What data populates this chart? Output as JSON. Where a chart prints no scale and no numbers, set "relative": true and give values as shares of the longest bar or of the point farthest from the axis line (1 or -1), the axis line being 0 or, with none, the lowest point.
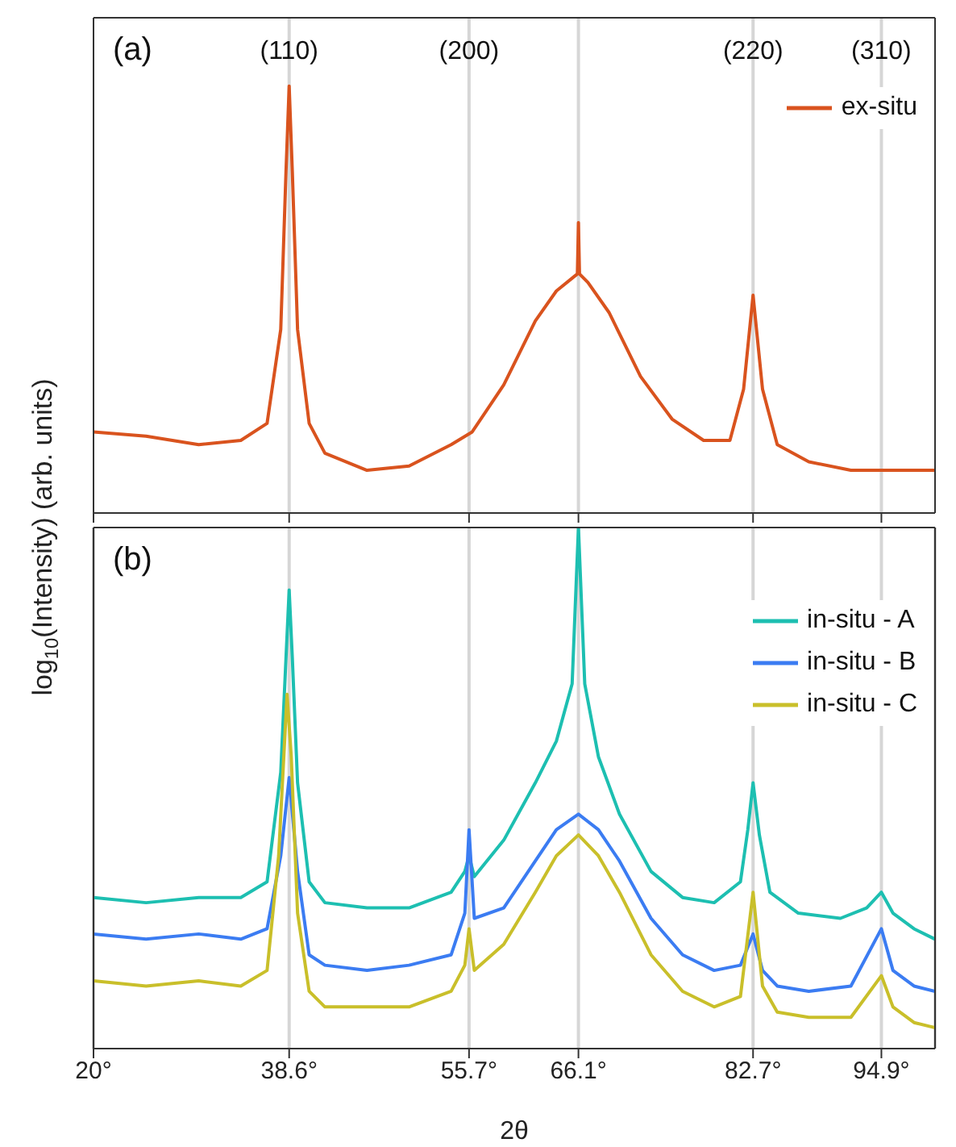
{
  "chart_data": [
    {
      "type": "line",
      "title": "(a)",
      "ylabel": "log$_{10}$(Intensity) (arb. units)",
      "relative": true,
      "xlim": [
        20,
        100
      ],
      "xticks": [
        20,
        38.6,
        55.7,
        66.1,
        82.7,
        94.9
      ],
      "tick_labels": false,
      "legend": "top right",
      "marker": "none",
      "line_style": "solid",
      "ref_lines": [
        {
          "axis": "x",
          "value": 38.6
        },
        {
          "axis": "x",
          "value": 55.7
        },
        {
          "axis": "x",
          "value": 66.1
        },
        {
          "axis": "x",
          "value": 82.7
        },
        {
          "axis": "x",
          "value": 94.9
        }
      ],
      "annotations": [
        {
          "text": "(110)",
          "x": 38.6
        },
        {
          "text": "(200)",
          "x": 55.7
        },
        {
          "text": "(220)",
          "x": 82.7
        },
        {
          "text": "(310)",
          "x": 94.9
        }
      ],
      "series": [
        {
          "name": "ex-situ",
          "color": "#d9531e",
          "x": [
            20,
            25,
            30,
            34,
            36.5,
            37.8,
            38.3,
            38.6,
            38.9,
            39.4,
            40.5,
            42,
            46,
            50,
            54,
            56,
            59,
            62,
            64,
            65.5,
            66,
            66.1,
            66.2,
            67,
            69,
            72,
            75,
            78,
            80.5,
            81.8,
            82.7,
            83.6,
            85,
            88,
            92,
            95,
            100
          ],
          "values": [
            0.19,
            0.18,
            0.16,
            0.17,
            0.21,
            0.43,
            0.8,
            1,
            0.8,
            0.43,
            0.21,
            0.14,
            0.1,
            0.11,
            0.16,
            0.19,
            0.3,
            0.45,
            0.52,
            0.55,
            0.56,
            0.68,
            0.56,
            0.54,
            0.47,
            0.32,
            0.22,
            0.17,
            0.17,
            0.29,
            0.51,
            0.29,
            0.16,
            0.12,
            0.1,
            0.1,
            0.1
          ]
        }
      ]
    },
    {
      "type": "line",
      "title": "(b)",
      "xlabel": "2θ",
      "relative": true,
      "xlim": [
        20,
        100
      ],
      "xticks": [
        {
          "value": 20,
          "label": "20°"
        },
        {
          "value": 38.6,
          "label": "38.6°"
        },
        {
          "value": 55.7,
          "label": "55.7°"
        },
        {
          "value": 66.1,
          "label": "66.1°"
        },
        {
          "value": 82.7,
          "label": "82.7°"
        },
        {
          "value": 94.9,
          "label": "94.9°"
        }
      ],
      "tick_labels": "x",
      "grid": "x",
      "legend": "top right",
      "marker": "none",
      "line_style": "solid",
      "series": [
        {
          "name": "in-situ - A",
          "color": "#1dbfb1",
          "x": [
            20,
            25,
            30,
            34,
            36.5,
            37.8,
            38.3,
            38.6,
            38.9,
            39.4,
            40.5,
            42,
            46,
            50,
            54,
            55.3,
            55.7,
            56.2,
            59,
            62,
            64,
            65.5,
            66.1,
            66.7,
            68,
            70,
            73,
            76,
            79,
            81.5,
            82.2,
            82.7,
            83.3,
            84.3,
            87,
            91,
            93.5,
            94.9,
            96,
            98,
            100
          ],
          "values": [
            0.29,
            0.28,
            0.29,
            0.29,
            0.32,
            0.53,
            0.75,
            0.88,
            0.75,
            0.51,
            0.32,
            0.28,
            0.27,
            0.27,
            0.3,
            0.34,
            0.37,
            0.33,
            0.4,
            0.51,
            0.59,
            0.7,
            1,
            0.7,
            0.56,
            0.45,
            0.34,
            0.29,
            0.28,
            0.32,
            0.42,
            0.51,
            0.41,
            0.3,
            0.26,
            0.25,
            0.27,
            0.3,
            0.26,
            0.23,
            0.21
          ]
        },
        {
          "name": "in-situ - B",
          "color": "#3b7cf2",
          "x": [
            20,
            25,
            30,
            34,
            36.5,
            37.8,
            38.6,
            39.4,
            40.5,
            42,
            46,
            50,
            54,
            55.3,
            55.7,
            56.2,
            59,
            62,
            64,
            66.1,
            68,
            70,
            73,
            76,
            79,
            81.5,
            82.7,
            83.6,
            85,
            88,
            92,
            94.9,
            96,
            98,
            100
          ],
          "values": [
            0.22,
            0.21,
            0.22,
            0.21,
            0.23,
            0.37,
            0.52,
            0.34,
            0.18,
            0.16,
            0.15,
            0.16,
            0.18,
            0.26,
            0.42,
            0.25,
            0.27,
            0.36,
            0.42,
            0.45,
            0.42,
            0.36,
            0.25,
            0.18,
            0.15,
            0.16,
            0.22,
            0.15,
            0.12,
            0.11,
            0.12,
            0.23,
            0.15,
            0.12,
            0.11
          ]
        },
        {
          "name": "in-situ - C",
          "color": "#c9bf2a",
          "x": [
            20,
            25,
            30,
            34,
            36.5,
            37.6,
            38.4,
            38.8,
            39.4,
            40.5,
            42,
            46,
            50,
            54,
            55.3,
            55.7,
            56.2,
            59,
            62,
            64,
            66.1,
            68,
            70,
            73,
            76,
            79,
            81.5,
            82.7,
            83.6,
            85,
            88,
            92,
            94.9,
            96,
            98,
            100
          ],
          "values": [
            0.13,
            0.12,
            0.13,
            0.12,
            0.15,
            0.37,
            0.68,
            0.56,
            0.26,
            0.11,
            0.08,
            0.08,
            0.08,
            0.11,
            0.16,
            0.23,
            0.15,
            0.2,
            0.3,
            0.37,
            0.41,
            0.37,
            0.3,
            0.18,
            0.11,
            0.08,
            0.1,
            0.3,
            0.12,
            0.07,
            0.06,
            0.06,
            0.14,
            0.08,
            0.05,
            0.04
          ]
        }
      ]
    }
  ]
}
